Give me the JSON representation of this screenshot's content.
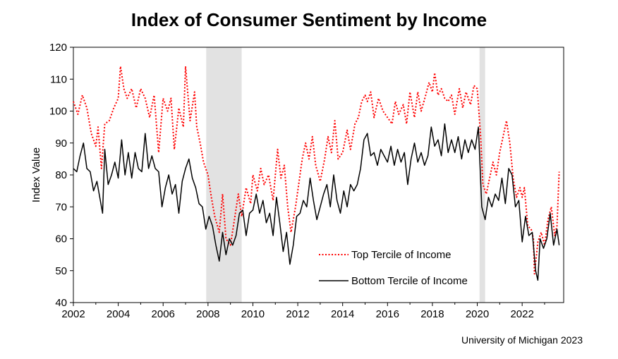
{
  "chart_data": {
    "type": "line",
    "title": "Index of Consumer Sentiment by Income",
    "xlabel": "",
    "ylabel": "Index Value",
    "source": "University of Michigan 2023",
    "xlim": [
      2002,
      2023.85
    ],
    "ylim": [
      40,
      120
    ],
    "x_ticks": [
      "2002",
      "2004",
      "2006",
      "2008",
      "2010",
      "2012",
      "2014",
      "2016",
      "2018",
      "2020",
      "2022"
    ],
    "y_ticks": [
      "40",
      "50",
      "60",
      "70",
      "80",
      "90",
      "100",
      "110",
      "120"
    ],
    "grid": false,
    "legend_position": "bottom-center",
    "shaded_periods": [
      {
        "start": 2007.92,
        "end": 2009.5,
        "color": "#e2e2e2"
      },
      {
        "start": 2020.1,
        "end": 2020.35,
        "color": "#e2e2e2"
      }
    ],
    "series": [
      {
        "name": "Top Tercile of Income",
        "color": "#ff0000",
        "style": "dotted",
        "points": [
          [
            2002.0,
            103
          ],
          [
            2002.2,
            99
          ],
          [
            2002.4,
            105
          ],
          [
            2002.6,
            101
          ],
          [
            2002.8,
            93
          ],
          [
            2003.0,
            89
          ],
          [
            2003.1,
            95
          ],
          [
            2003.25,
            82
          ],
          [
            2003.4,
            96
          ],
          [
            2003.6,
            97
          ],
          [
            2003.8,
            101
          ],
          [
            2004.0,
            104
          ],
          [
            2004.1,
            114
          ],
          [
            2004.25,
            107
          ],
          [
            2004.4,
            104
          ],
          [
            2004.6,
            107
          ],
          [
            2004.8,
            101
          ],
          [
            2005.0,
            107
          ],
          [
            2005.2,
            104
          ],
          [
            2005.4,
            98
          ],
          [
            2005.6,
            105
          ],
          [
            2005.8,
            87
          ],
          [
            2006.0,
            104
          ],
          [
            2006.2,
            100
          ],
          [
            2006.35,
            104
          ],
          [
            2006.5,
            88
          ],
          [
            2006.7,
            101
          ],
          [
            2006.9,
            95
          ],
          [
            2007.0,
            114
          ],
          [
            2007.2,
            97
          ],
          [
            2007.4,
            106
          ],
          [
            2007.5,
            95
          ],
          [
            2007.65,
            90
          ],
          [
            2007.8,
            84
          ],
          [
            2008.0,
            80
          ],
          [
            2008.15,
            73
          ],
          [
            2008.3,
            67
          ],
          [
            2008.5,
            62
          ],
          [
            2008.65,
            74
          ],
          [
            2008.8,
            60
          ],
          [
            2009.0,
            58
          ],
          [
            2009.2,
            67
          ],
          [
            2009.35,
            74
          ],
          [
            2009.5,
            67
          ],
          [
            2009.7,
            76
          ],
          [
            2009.9,
            71
          ],
          [
            2010.0,
            80
          ],
          [
            2010.2,
            75
          ],
          [
            2010.35,
            82
          ],
          [
            2010.5,
            77
          ],
          [
            2010.7,
            80
          ],
          [
            2010.9,
            72
          ],
          [
            2011.1,
            88
          ],
          [
            2011.25,
            79
          ],
          [
            2011.4,
            83
          ],
          [
            2011.55,
            70
          ],
          [
            2011.7,
            62
          ],
          [
            2011.9,
            70
          ],
          [
            2012.0,
            75
          ],
          [
            2012.2,
            85
          ],
          [
            2012.35,
            90
          ],
          [
            2012.5,
            85
          ],
          [
            2012.65,
            92
          ],
          [
            2012.8,
            83
          ],
          [
            2013.0,
            78
          ],
          [
            2013.2,
            85
          ],
          [
            2013.35,
            92
          ],
          [
            2013.5,
            87
          ],
          [
            2013.65,
            97
          ],
          [
            2013.8,
            85
          ],
          [
            2014.0,
            87
          ],
          [
            2014.2,
            94
          ],
          [
            2014.35,
            88
          ],
          [
            2014.55,
            96
          ],
          [
            2014.7,
            98
          ],
          [
            2014.85,
            103
          ],
          [
            2015.0,
            105
          ],
          [
            2015.1,
            103
          ],
          [
            2015.25,
            106
          ],
          [
            2015.4,
            98
          ],
          [
            2015.6,
            104
          ],
          [
            2015.8,
            100
          ],
          [
            2016.0,
            98
          ],
          [
            2016.2,
            96
          ],
          [
            2016.35,
            103
          ],
          [
            2016.5,
            99
          ],
          [
            2016.7,
            102
          ],
          [
            2016.85,
            96
          ],
          [
            2017.0,
            106
          ],
          [
            2017.2,
            98
          ],
          [
            2017.35,
            106
          ],
          [
            2017.5,
            100
          ],
          [
            2017.7,
            105
          ],
          [
            2017.85,
            109
          ],
          [
            2018.0,
            106
          ],
          [
            2018.1,
            112
          ],
          [
            2018.25,
            105
          ],
          [
            2018.4,
            107
          ],
          [
            2018.55,
            104
          ],
          [
            2018.7,
            103
          ],
          [
            2018.85,
            105
          ],
          [
            2019.0,
            99
          ],
          [
            2019.2,
            107
          ],
          [
            2019.35,
            101
          ],
          [
            2019.5,
            106
          ],
          [
            2019.7,
            102
          ],
          [
            2019.85,
            108
          ],
          [
            2020.0,
            107
          ],
          [
            2020.15,
            92
          ],
          [
            2020.25,
            77
          ],
          [
            2020.4,
            74
          ],
          [
            2020.55,
            79
          ],
          [
            2020.7,
            84
          ],
          [
            2020.85,
            80
          ],
          [
            2021.0,
            87
          ],
          [
            2021.15,
            92
          ],
          [
            2021.3,
            97
          ],
          [
            2021.45,
            90
          ],
          [
            2021.6,
            79
          ],
          [
            2021.75,
            73
          ],
          [
            2021.9,
            76
          ],
          [
            2022.0,
            73
          ],
          [
            2022.1,
            76
          ],
          [
            2022.25,
            64
          ],
          [
            2022.4,
            63
          ],
          [
            2022.5,
            60
          ],
          [
            2022.55,
            49
          ],
          [
            2022.7,
            59
          ],
          [
            2022.85,
            62
          ],
          [
            2023.0,
            58
          ],
          [
            2023.15,
            66
          ],
          [
            2023.3,
            70
          ],
          [
            2023.45,
            61
          ],
          [
            2023.55,
            64
          ],
          [
            2023.65,
            81
          ]
        ]
      },
      {
        "name": "Bottom Tercile of Income",
        "color": "#000000",
        "style": "solid",
        "points": [
          [
            2002.0,
            82
          ],
          [
            2002.15,
            81
          ],
          [
            2002.3,
            86
          ],
          [
            2002.45,
            90
          ],
          [
            2002.6,
            82
          ],
          [
            2002.75,
            81
          ],
          [
            2002.9,
            75
          ],
          [
            2003.05,
            78
          ],
          [
            2003.2,
            72
          ],
          [
            2003.3,
            68
          ],
          [
            2003.4,
            88
          ],
          [
            2003.55,
            77
          ],
          [
            2003.7,
            80
          ],
          [
            2003.85,
            84
          ],
          [
            2004.0,
            79
          ],
          [
            2004.15,
            91
          ],
          [
            2004.3,
            80
          ],
          [
            2004.45,
            87
          ],
          [
            2004.6,
            79
          ],
          [
            2004.75,
            87
          ],
          [
            2004.9,
            82
          ],
          [
            2005.05,
            81
          ],
          [
            2005.2,
            93
          ],
          [
            2005.35,
            82
          ],
          [
            2005.5,
            86
          ],
          [
            2005.65,
            82
          ],
          [
            2005.8,
            81
          ],
          [
            2005.95,
            70
          ],
          [
            2006.1,
            76
          ],
          [
            2006.25,
            80
          ],
          [
            2006.4,
            74
          ],
          [
            2006.55,
            77
          ],
          [
            2006.7,
            68
          ],
          [
            2006.85,
            78
          ],
          [
            2007.0,
            82
          ],
          [
            2007.15,
            85
          ],
          [
            2007.3,
            79
          ],
          [
            2007.45,
            76
          ],
          [
            2007.6,
            71
          ],
          [
            2007.75,
            70
          ],
          [
            2007.9,
            63
          ],
          [
            2008.05,
            67
          ],
          [
            2008.2,
            64
          ],
          [
            2008.35,
            58
          ],
          [
            2008.5,
            53
          ],
          [
            2008.65,
            62
          ],
          [
            2008.8,
            55
          ],
          [
            2008.95,
            60
          ],
          [
            2009.1,
            58
          ],
          [
            2009.25,
            61
          ],
          [
            2009.4,
            68
          ],
          [
            2009.55,
            69
          ],
          [
            2009.7,
            61
          ],
          [
            2009.85,
            68
          ],
          [
            2010.0,
            69
          ],
          [
            2010.15,
            74
          ],
          [
            2010.3,
            68
          ],
          [
            2010.45,
            72
          ],
          [
            2010.6,
            65
          ],
          [
            2010.75,
            68
          ],
          [
            2010.9,
            61
          ],
          [
            2011.05,
            73
          ],
          [
            2011.2,
            65
          ],
          [
            2011.35,
            56
          ],
          [
            2011.5,
            62
          ],
          [
            2011.65,
            52
          ],
          [
            2011.8,
            58
          ],
          [
            2011.95,
            67
          ],
          [
            2012.1,
            68
          ],
          [
            2012.25,
            72
          ],
          [
            2012.4,
            70
          ],
          [
            2012.55,
            79
          ],
          [
            2012.7,
            72
          ],
          [
            2012.85,
            66
          ],
          [
            2013.0,
            70
          ],
          [
            2013.15,
            74
          ],
          [
            2013.3,
            77
          ],
          [
            2013.45,
            70
          ],
          [
            2013.6,
            80
          ],
          [
            2013.75,
            72
          ],
          [
            2013.9,
            68
          ],
          [
            2014.05,
            75
          ],
          [
            2014.2,
            70
          ],
          [
            2014.35,
            77
          ],
          [
            2014.5,
            75
          ],
          [
            2014.65,
            77
          ],
          [
            2014.8,
            82
          ],
          [
            2014.95,
            91
          ],
          [
            2015.1,
            93
          ],
          [
            2015.25,
            86
          ],
          [
            2015.4,
            87
          ],
          [
            2015.55,
            83
          ],
          [
            2015.7,
            88
          ],
          [
            2015.85,
            86
          ],
          [
            2016.0,
            84
          ],
          [
            2016.15,
            89
          ],
          [
            2016.3,
            83
          ],
          [
            2016.45,
            88
          ],
          [
            2016.6,
            84
          ],
          [
            2016.75,
            87
          ],
          [
            2016.9,
            77
          ],
          [
            2017.05,
            85
          ],
          [
            2017.2,
            90
          ],
          [
            2017.35,
            84
          ],
          [
            2017.5,
            87
          ],
          [
            2017.65,
            83
          ],
          [
            2017.8,
            86
          ],
          [
            2017.95,
            95
          ],
          [
            2018.1,
            89
          ],
          [
            2018.25,
            91
          ],
          [
            2018.4,
            86
          ],
          [
            2018.55,
            96
          ],
          [
            2018.7,
            87
          ],
          [
            2018.85,
            91
          ],
          [
            2019.0,
            87
          ],
          [
            2019.15,
            92
          ],
          [
            2019.3,
            85
          ],
          [
            2019.45,
            91
          ],
          [
            2019.6,
            87
          ],
          [
            2019.75,
            91
          ],
          [
            2019.9,
            88
          ],
          [
            2020.05,
            95
          ],
          [
            2020.2,
            70
          ],
          [
            2020.35,
            66
          ],
          [
            2020.5,
            73
          ],
          [
            2020.65,
            70
          ],
          [
            2020.8,
            74
          ],
          [
            2020.95,
            72
          ],
          [
            2021.1,
            79
          ],
          [
            2021.25,
            71
          ],
          [
            2021.4,
            82
          ],
          [
            2021.55,
            80
          ],
          [
            2021.7,
            70
          ],
          [
            2021.85,
            72
          ],
          [
            2022.0,
            59
          ],
          [
            2022.15,
            67
          ],
          [
            2022.3,
            61
          ],
          [
            2022.45,
            62
          ],
          [
            2022.6,
            50
          ],
          [
            2022.7,
            47
          ],
          [
            2022.8,
            60
          ],
          [
            2022.95,
            57
          ],
          [
            2023.1,
            60
          ],
          [
            2023.25,
            68
          ],
          [
            2023.4,
            58
          ],
          [
            2023.55,
            63
          ],
          [
            2023.65,
            58
          ]
        ]
      }
    ]
  }
}
